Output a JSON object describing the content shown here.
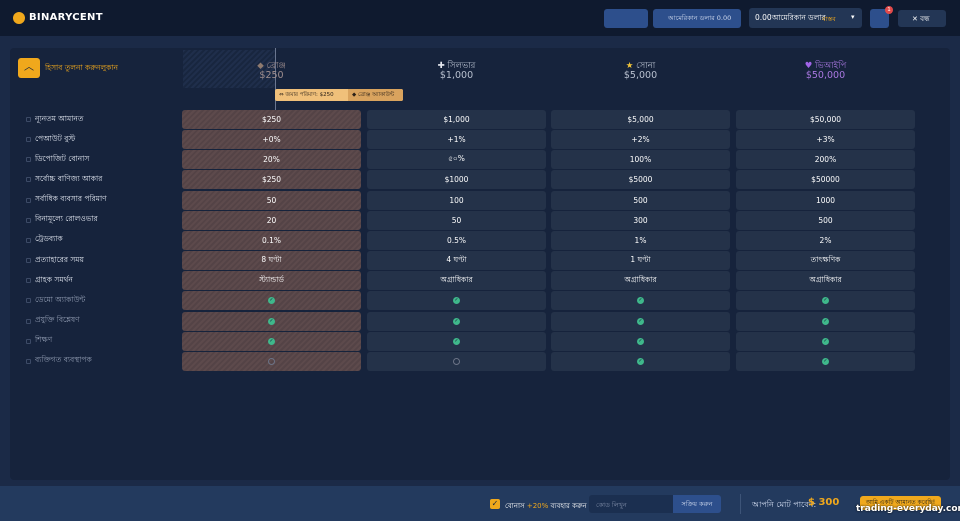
{
  "header": {
    "logo": "BINARYCENT",
    "balance_pill": "আমেরিকান ডলার 0.00",
    "account_amount": "0.00আমেরিকান ডলার",
    "account_type": "বাস্তব",
    "notification_count": "1",
    "close": "বন্ধ"
  },
  "compare_toggle": "হিসাব তুলনা করুনলুকান",
  "tiers": [
    {
      "name": "ব্রোঞ্জ",
      "deposit": "$250"
    },
    {
      "name": "সিলভার",
      "deposit": "$1,000"
    },
    {
      "name": "সোনা",
      "deposit": "$5,000"
    },
    {
      "name": "ভিআইপি",
      "deposit": "$50,000"
    }
  ],
  "tooltip": {
    "deposit_label": "জমার পরিমাণ:",
    "deposit_value": "$250",
    "account": "ব্রোঞ্জ অ্যাকাউন্ট"
  },
  "rows": [
    {
      "label": "ন্যূনতম আমানত",
      "cells": [
        "$250",
        "$1,000",
        "$5,000",
        "$50,000"
      ]
    },
    {
      "label": "পেআউট বুস্ট",
      "cells": [
        "+0%",
        "+1%",
        "+2%",
        "+3%"
      ]
    },
    {
      "label": "ডিপোজিট বোনাস",
      "cells": [
        "20%",
        "৫০%",
        "100%",
        "200%"
      ]
    },
    {
      "label": "সর্বোচ্চ বাণিজ্য আকার",
      "cells": [
        "$250",
        "$1000",
        "$5000",
        "$50000"
      ]
    },
    {
      "label": "সর্বাধিক ব্যবসার পরিমাণ",
      "cells": [
        "50",
        "100",
        "500",
        "1000"
      ]
    },
    {
      "label": "বিনামূল্যে রোলওভার",
      "cells": [
        "20",
        "50",
        "300",
        "500"
      ]
    },
    {
      "label": "ট্রেডব্যাক",
      "cells": [
        "0.1%",
        "0.5%",
        "1%",
        "2%"
      ]
    },
    {
      "label": "প্রত্যাহারের সময়",
      "cells": [
        "8 ঘণ্টা",
        "4 ঘণ্টা",
        "1 ঘণ্টা",
        "তাৎক্ষণিক"
      ]
    },
    {
      "label": "গ্রাহক সমর্থন",
      "cells": [
        "স্ট্যান্ডার্ড",
        "অগ্রাধিকার",
        "অগ্রাধিকার",
        "অগ্রাধিকার"
      ]
    },
    {
      "label": "ডেমো অ্যাকাউন্ট",
      "cells": [
        true,
        true,
        true,
        true
      ]
    },
    {
      "label": "প্রযুক্তি বিশ্লেষণ",
      "cells": [
        true,
        true,
        true,
        true
      ]
    },
    {
      "label": "শিক্ষণ",
      "cells": [
        true,
        true,
        true,
        true
      ]
    },
    {
      "label": "ব্যক্তিগত ব্যবস্থাপক",
      "cells": [
        false,
        false,
        true,
        true
      ]
    }
  ],
  "footer": {
    "bonus_label": "বোনাস",
    "bonus_percent": "+20%",
    "bonus_action": "ব্যবহার করুন",
    "code_placeholder": "কোড লিখুন",
    "activate": "সক্রিয় করুন",
    "total_label": "আপনি মোট পাবেন:",
    "total_value": "$ 300",
    "deposit_button": "আমি একটি আমানত করেছি!"
  },
  "watermark": "trading-everyday.com"
}
